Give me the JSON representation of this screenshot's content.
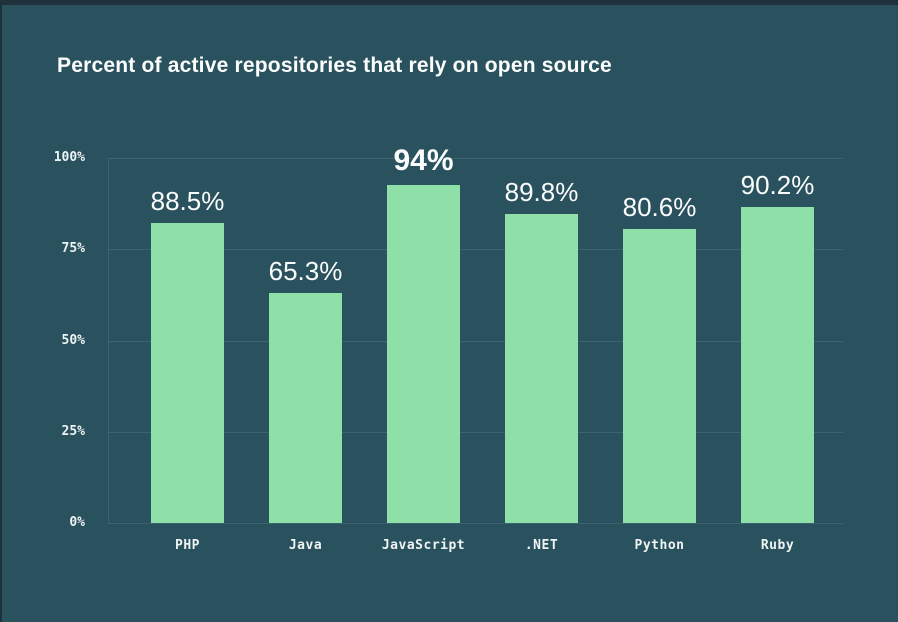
{
  "window": {
    "background_color": "#2a515e",
    "top_edge_color": "#1f323b"
  },
  "chart_data": {
    "type": "bar",
    "title": "Percent of active repositories that rely on open source",
    "categories": [
      "PHP",
      "Java",
      "JavaScript",
      ".NET",
      "Python",
      "Ruby"
    ],
    "values": [
      88.5,
      65.3,
      94,
      89.8,
      80.6,
      90.2
    ],
    "value_labels": [
      "88.5%",
      "65.3%",
      "94%",
      "89.8%",
      "80.6%",
      "90.2%"
    ],
    "emphasized_category": "JavaScript",
    "emphasized_index": 2,
    "y_ticks": [
      "100%",
      "75%",
      "50%",
      "25%",
      "0%"
    ],
    "ylim": [
      0,
      100
    ],
    "xlabel": "",
    "ylabel": "",
    "grid": "horizontal gridlines every 25%",
    "legend_position": "none",
    "bar_color": "#8edfa8",
    "background_color": "#2a515e",
    "gridline_color": "#3c6470",
    "label_color": "#ffffff",
    "bar_visual_heights_pct": [
      82.2,
      63.0,
      92.6,
      84.7,
      80.5,
      86.6
    ]
  }
}
